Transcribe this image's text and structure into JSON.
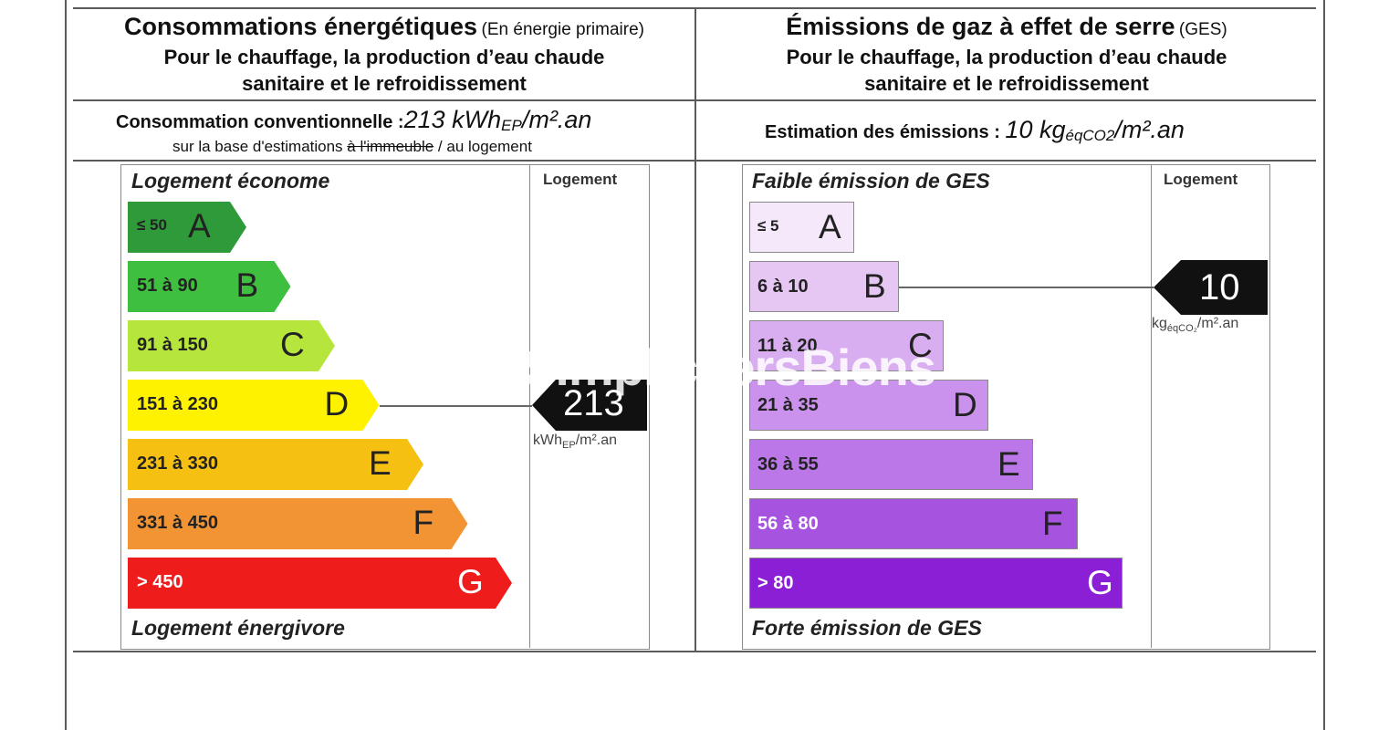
{
  "energy": {
    "title": "Consommations énergétiques",
    "title_note": "(En énergie primaire)",
    "subtitle_line1": "Pour le chauffage, la production d’eau chaude",
    "subtitle_line2": "sanitaire et le refroidissement",
    "consumption_label": "Consommation conventionnelle :",
    "consumption_value": "213 kWh",
    "consumption_sub": "EP",
    "consumption_unit": "/m².an",
    "basis_prefix": "sur la base d'estimations ",
    "basis_struck": "à l'immeuble",
    "basis_suffix": " / au logement",
    "top_caption": "Logement économe",
    "bottom_caption": "Logement énergivore",
    "column_header": "Logement",
    "classes": [
      {
        "range": "≤ 50",
        "letter": "A",
        "color": "#2e9a3a"
      },
      {
        "range": "51 à 90",
        "letter": "B",
        "color": "#3fbf3f"
      },
      {
        "range": "91 à 150",
        "letter": "C",
        "color": "#b6e53b"
      },
      {
        "range": "151 à 230",
        "letter": "D",
        "color": "#fff200"
      },
      {
        "range": "231 à 330",
        "letter": "E",
        "color": "#f5c012"
      },
      {
        "range": "331 à 450",
        "letter": "F",
        "color": "#f39434"
      },
      {
        "range": "> 450",
        "letter": "G",
        "color": "#ef1c1c"
      }
    ],
    "pointer_value": "213",
    "pointer_class_index": 3,
    "pointer_unit_prefix": "kWh",
    "pointer_unit_sub": "EP",
    "pointer_unit_suffix": "/m².an"
  },
  "ges": {
    "title": "Émissions de gaz à effet de serre",
    "title_note": "(GES)",
    "subtitle_line1": "Pour le chauffage, la production d’eau chaude",
    "subtitle_line2": "sanitaire et le refroidissement",
    "emission_label": "Estimation des émissions : ",
    "emission_value": "10 kg",
    "emission_sub": "éqCO2",
    "emission_unit": "/m².an",
    "top_caption": "Faible émission de GES",
    "bottom_caption": "Forte émission de GES",
    "column_header": "Logement",
    "classes": [
      {
        "range": "≤ 5",
        "letter": "A",
        "color": "#f6e8fb"
      },
      {
        "range": "6 à 10",
        "letter": "B",
        "color": "#e6c6f3"
      },
      {
        "range": "11 à 20",
        "letter": "C",
        "color": "#d9aef0"
      },
      {
        "range": "21 à 35",
        "letter": "D",
        "color": "#ca92ec"
      },
      {
        "range": "36 à 55",
        "letter": "E",
        "color": "#bb76e8"
      },
      {
        "range": "56 à 80",
        "letter": "F",
        "color": "#a653e0"
      },
      {
        "range": "> 80",
        "letter": "G",
        "color": "#8b1fd6"
      }
    ],
    "pointer_value": "10",
    "pointer_class_index": 1,
    "pointer_unit_prefix": "kg",
    "pointer_unit_sub": "éqCO₂",
    "pointer_unit_suffix": "/m².an"
  },
  "watermark": "SimplicitersBiens"
}
